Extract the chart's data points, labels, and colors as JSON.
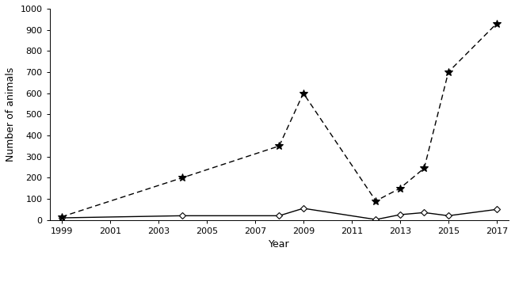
{
  "boars_x": [
    1999,
    2004,
    2008,
    2009,
    2012,
    2013,
    2014,
    2015,
    2017
  ],
  "boars_y": [
    10,
    20,
    20,
    55,
    2,
    25,
    35,
    20,
    50
  ],
  "sows_x": [
    1999,
    2004,
    2008,
    2009,
    2012,
    2013,
    2014,
    2015,
    2017
  ],
  "sows_y": [
    15,
    200,
    350,
    600,
    90,
    150,
    245,
    700,
    930
  ],
  "xlabel": "Year",
  "ylabel": "Number of animals",
  "xlim": [
    1998.5,
    2017.5
  ],
  "ylim": [
    0,
    1000
  ],
  "yticks": [
    0,
    100,
    200,
    300,
    400,
    500,
    600,
    700,
    800,
    900,
    1000
  ],
  "xticks": [
    1999,
    2001,
    2003,
    2005,
    2007,
    2009,
    2011,
    2013,
    2015,
    2017
  ],
  "background": "#ffffff"
}
